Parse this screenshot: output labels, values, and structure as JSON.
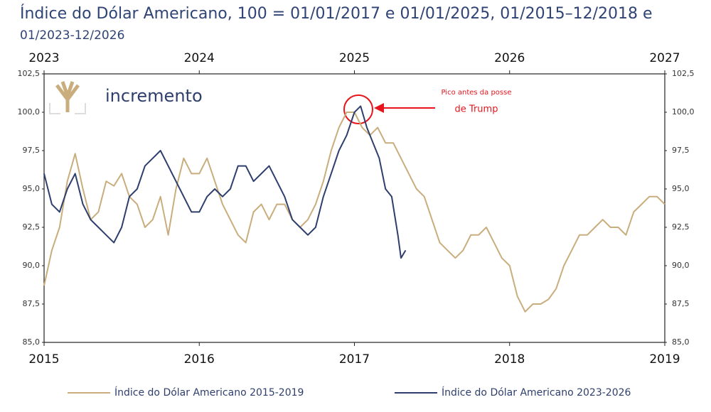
{
  "chart_data": {
    "type": "line",
    "title": "Índice do Dólar Americano, 100 = 01/01/2017 e 01/01/2025, 01/2015–12/2018 e",
    "subtitle": "01/2023-12/2026",
    "brand": "incremento",
    "annotation": [
      "Pico antes da posse",
      "de Trump"
    ],
    "xlim": [
      2015,
      2019
    ],
    "xticks": [
      2015,
      2016,
      2017,
      2018,
      2019
    ],
    "x2lim": [
      2023,
      2027
    ],
    "x2ticks": [
      2023,
      2024,
      2025,
      2026,
      2027
    ],
    "ylim": [
      85,
      102.5
    ],
    "yticks": [
      {
        "value": 85,
        "label": "85,0"
      },
      {
        "value": 87.5,
        "label": "87,5"
      },
      {
        "value": 90,
        "label": "90,0"
      },
      {
        "value": 92.5,
        "label": "92,5"
      },
      {
        "value": 95,
        "label": "95,0"
      },
      {
        "value": 97.5,
        "label": "97,5"
      },
      {
        "value": 100,
        "label": "100,0"
      },
      {
        "value": 102.5,
        "label": "102,5"
      }
    ],
    "grid": false,
    "series": [
      {
        "name": "Índice do Dólar Americano 2015-2019",
        "color": "#c9ad7c",
        "xaxis": "x",
        "x": [
          2015.0,
          2015.05,
          2015.1,
          2015.15,
          2015.2,
          2015.25,
          2015.3,
          2015.35,
          2015.4,
          2015.45,
          2015.5,
          2015.55,
          2015.6,
          2015.65,
          2015.7,
          2015.75,
          2015.8,
          2015.85,
          2015.9,
          2015.95,
          2016.0,
          2016.05,
          2016.1,
          2016.15,
          2016.2,
          2016.25,
          2016.3,
          2016.35,
          2016.4,
          2016.45,
          2016.5,
          2016.55,
          2016.6,
          2016.65,
          2016.7,
          2016.75,
          2016.8,
          2016.85,
          2016.9,
          2016.95,
          2017.0,
          2017.05,
          2017.1,
          2017.15,
          2017.2,
          2017.25,
          2017.3,
          2017.35,
          2017.4,
          2017.45,
          2017.5,
          2017.55,
          2017.6,
          2017.65,
          2017.7,
          2017.75,
          2017.8,
          2017.85,
          2017.9,
          2017.95,
          2018.0,
          2018.05,
          2018.1,
          2018.15,
          2018.2,
          2018.25,
          2018.3,
          2018.35,
          2018.4,
          2018.45,
          2018.5,
          2018.55,
          2018.6,
          2018.65,
          2018.7,
          2018.75,
          2018.8,
          2018.85,
          2018.9,
          2018.95,
          2019.0
        ],
        "values": [
          88.7,
          91.0,
          92.5,
          95.5,
          97.3,
          95.0,
          93.0,
          93.5,
          95.5,
          95.2,
          96.0,
          94.5,
          94.0,
          92.5,
          93.0,
          94.5,
          92.0,
          95.0,
          97.0,
          96.0,
          96.0,
          97.0,
          95.5,
          94.0,
          93.0,
          92.0,
          91.5,
          93.5,
          94.0,
          93.0,
          94.0,
          94.0,
          93.0,
          92.5,
          93.0,
          94.0,
          95.5,
          97.5,
          99.0,
          100.0,
          100.0,
          99.0,
          98.5,
          99.0,
          98.0,
          98.0,
          97.0,
          96.0,
          95.0,
          94.5,
          93.0,
          91.5,
          91.0,
          90.5,
          91.0,
          92.0,
          92.0,
          92.5,
          91.5,
          90.5,
          90.0,
          88.0,
          87.0,
          87.5,
          87.5,
          87.8,
          88.5,
          90.0,
          91.0,
          92.0,
          92.0,
          92.5,
          93.0,
          92.5,
          92.5,
          92.0,
          93.5,
          94.0,
          94.5,
          94.5,
          94.0
        ]
      },
      {
        "name": "Índice do Dólar Americano 2023-2026",
        "color": "#2f3f6d",
        "xaxis": "x2",
        "x": [
          2023.0,
          2023.05,
          2023.1,
          2023.15,
          2023.2,
          2023.25,
          2023.3,
          2023.35,
          2023.4,
          2023.45,
          2023.5,
          2023.55,
          2023.6,
          2023.65,
          2023.7,
          2023.75,
          2023.8,
          2023.85,
          2023.9,
          2023.95,
          2024.0,
          2024.05,
          2024.1,
          2024.15,
          2024.2,
          2024.25,
          2024.3,
          2024.35,
          2024.4,
          2024.45,
          2024.5,
          2024.55,
          2024.6,
          2024.65,
          2024.7,
          2024.75,
          2024.8,
          2024.85,
          2024.9,
          2024.95,
          2025.0,
          2025.04,
          2025.08,
          2025.12,
          2025.16,
          2025.2,
          2025.24,
          2025.28,
          2025.3,
          2025.33
        ],
        "values": [
          96.0,
          94.0,
          93.5,
          95.0,
          96.0,
          94.0,
          93.0,
          92.5,
          92.0,
          91.5,
          92.5,
          94.5,
          95.0,
          96.5,
          97.0,
          97.5,
          96.5,
          95.5,
          94.5,
          93.5,
          93.5,
          94.5,
          95.0,
          94.5,
          95.0,
          96.5,
          96.5,
          95.5,
          96.0,
          96.5,
          95.5,
          94.5,
          93.0,
          92.5,
          92.0,
          92.5,
          94.5,
          96.0,
          97.5,
          98.5,
          100.0,
          100.4,
          99.0,
          98.0,
          97.0,
          95.0,
          94.5,
          92.0,
          90.5,
          91.0
        ]
      }
    ]
  }
}
